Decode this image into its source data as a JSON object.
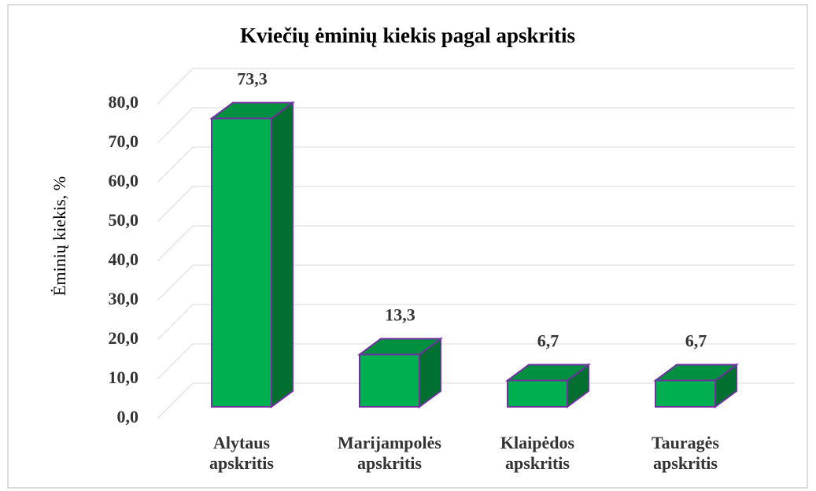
{
  "chart_data": {
    "type": "bar3d",
    "title": "Kviečių ėminių kiekis pagal apskritis",
    "y_label": "Ėminių kiekis, %",
    "categories": [
      "Alytaus apskritis",
      "Marijampolės apskritis",
      "Klaipėdos apskritis",
      "Tauragės apskritis"
    ],
    "values": [
      73.3,
      13.3,
      6.7,
      6.7
    ],
    "value_labels": [
      "73,3",
      "13,3",
      "6,7",
      "6,7"
    ],
    "color": "#00b050",
    "ylim": [
      0,
      80
    ],
    "yticks": [
      {
        "value": 0,
        "label": "0,0"
      },
      {
        "value": 10,
        "label": "10,0"
      },
      {
        "value": 20,
        "label": "20,0"
      },
      {
        "value": 30,
        "label": "30,0"
      },
      {
        "value": 40,
        "label": "40,0"
      },
      {
        "value": 50,
        "label": "50,0"
      },
      {
        "value": 60,
        "label": "60,0"
      },
      {
        "value": 70,
        "label": "70,0"
      },
      {
        "value": 80,
        "label": "80,0"
      }
    ],
    "grid": true
  }
}
